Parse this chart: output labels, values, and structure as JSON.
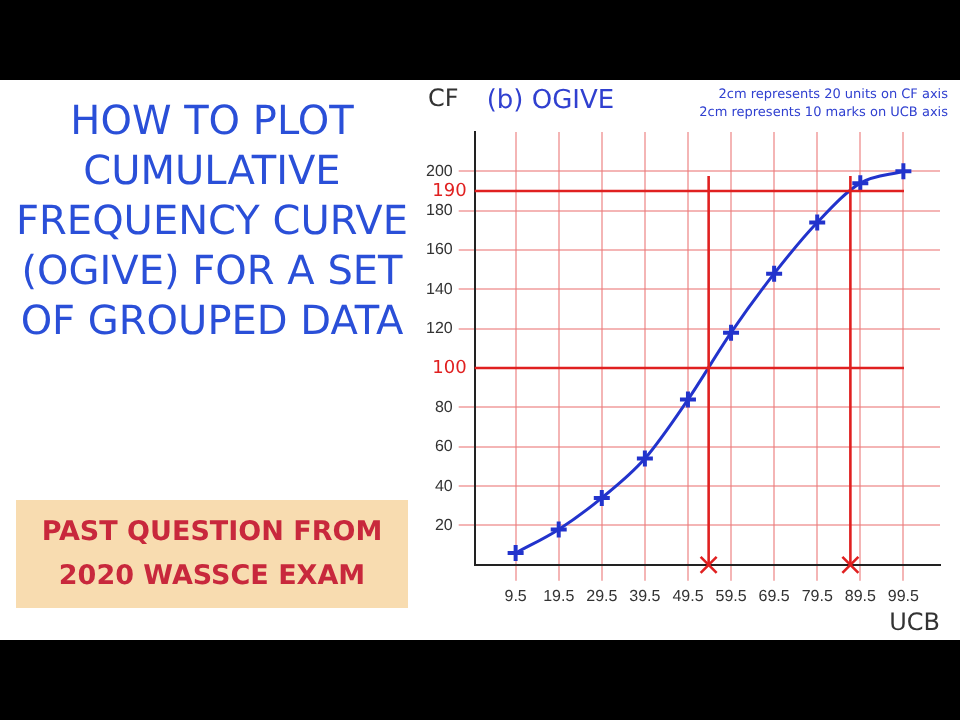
{
  "chart_data": {
    "type": "line",
    "title": "HOW TO PLOT CUMULATIVE FREQUENCY CURVE (OGIVE) FOR A SET OF GROUPED DATA",
    "subtitle": "(b) OGIVE",
    "xlabel": "UCB",
    "ylabel": "CF",
    "annotations": [
      "PAST QUESTION FROM 2020 WASSCE EXAM",
      "2cm represents 20 units on CF axis",
      "2cm represents 10 marks on UCB axis"
    ],
    "x": [
      9.5,
      19.5,
      29.5,
      39.5,
      49.5,
      59.5,
      69.5,
      79.5,
      89.5,
      99.5
    ],
    "series": [
      {
        "color": "#2233cc",
        "values": [
          6,
          18,
          34,
          54,
          84,
          118,
          148,
          174,
          194,
          200
        ]
      }
    ],
    "xlim": [
      0,
      108
    ],
    "xticks": [
      9.5,
      19.5,
      29.5,
      39.5,
      49.5,
      59.5,
      69.5,
      79.5,
      89.5,
      99.5
    ],
    "ylim": [
      0,
      220
    ],
    "yticks": [
      20,
      40,
      60,
      80,
      120,
      140,
      160,
      180,
      200
    ],
    "ref_lines": [
      {
        "axis": "y",
        "value": 100,
        "label": "100",
        "color": "#e02020"
      },
      {
        "axis": "y",
        "value": 190,
        "label": "190",
        "color": "#e02020"
      },
      {
        "axis": "x",
        "value": 54.3,
        "color": "#e02020"
      },
      {
        "axis": "x",
        "value": 87.2,
        "color": "#e02020"
      }
    ],
    "grid": true,
    "legend": false,
    "marker": "cross",
    "line_style": "solid"
  }
}
